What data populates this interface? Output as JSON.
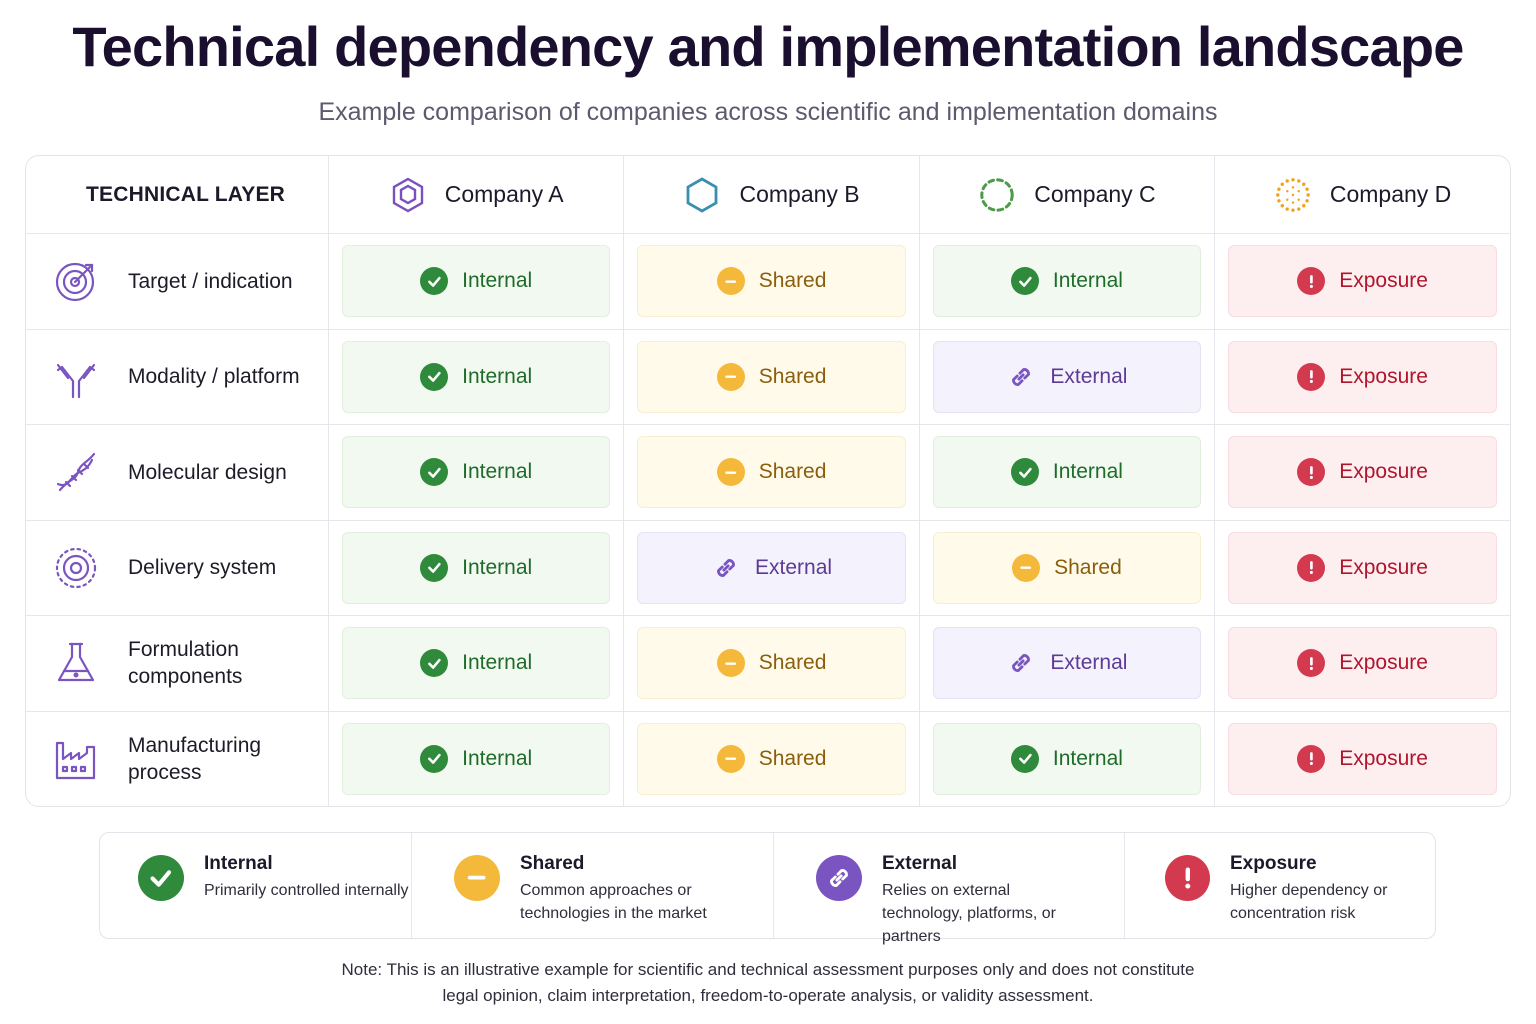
{
  "title": "Technical dependency and implementation landscape",
  "subtitle": "Example comparison of companies across scientific and implementation domains",
  "table": {
    "layer_header": "TECHNICAL LAYER",
    "companies": [
      {
        "name": "Company A",
        "logo": "hexagon-cube-icon",
        "color": "#7b4fbf"
      },
      {
        "name": "Company B",
        "logo": "hexagon-outline-icon",
        "color": "#3a8fb0"
      },
      {
        "name": "Company C",
        "logo": "dashed-circle-icon",
        "color": "#4c9a4a"
      },
      {
        "name": "Company D",
        "logo": "dotted-circle-icon",
        "color": "#f0a21c"
      }
    ],
    "status_labels": {
      "internal": "Internal",
      "shared": "Shared",
      "external": "External",
      "exposure": "Exposure"
    },
    "rows": [
      {
        "label": "Target / indication",
        "icon": "target-icon",
        "statuses": [
          "internal",
          "shared",
          "internal",
          "exposure"
        ]
      },
      {
        "label": "Modality / platform",
        "icon": "antibody-icon",
        "statuses": [
          "internal",
          "shared",
          "external",
          "exposure"
        ]
      },
      {
        "label": "Molecular design",
        "icon": "dna-icon",
        "statuses": [
          "internal",
          "shared",
          "internal",
          "exposure"
        ]
      },
      {
        "label": "Delivery system",
        "icon": "nanoparticle-icon",
        "statuses": [
          "internal",
          "external",
          "shared",
          "exposure"
        ]
      },
      {
        "label": "Formulation components",
        "icon": "flask-icon",
        "statuses": [
          "internal",
          "shared",
          "external",
          "exposure"
        ]
      },
      {
        "label": "Manufacturing process",
        "icon": "factory-icon",
        "statuses": [
          "internal",
          "shared",
          "internal",
          "exposure"
        ]
      }
    ]
  },
  "legend": [
    {
      "key": "internal",
      "title": "Internal",
      "description": "Primarily controlled internally",
      "color": "#2f8a3c"
    },
    {
      "key": "shared",
      "title": "Shared",
      "description": "Common approaches or technologies in the market",
      "color": "#f4b93a"
    },
    {
      "key": "external",
      "title": "External",
      "description": "Relies on external technology, platforms, or partners",
      "color": "#7a55c2"
    },
    {
      "key": "exposure",
      "title": "Exposure",
      "description": "Higher dependency or concentration risk",
      "color": "#d43a4f"
    }
  ],
  "note_lines": [
    "Note: This is an illustrative example for scientific and technical assessment purposes only and does not constitute",
    "legal opinion, claim interpretation, freedom-to-operate analysis, or validity assessment."
  ]
}
